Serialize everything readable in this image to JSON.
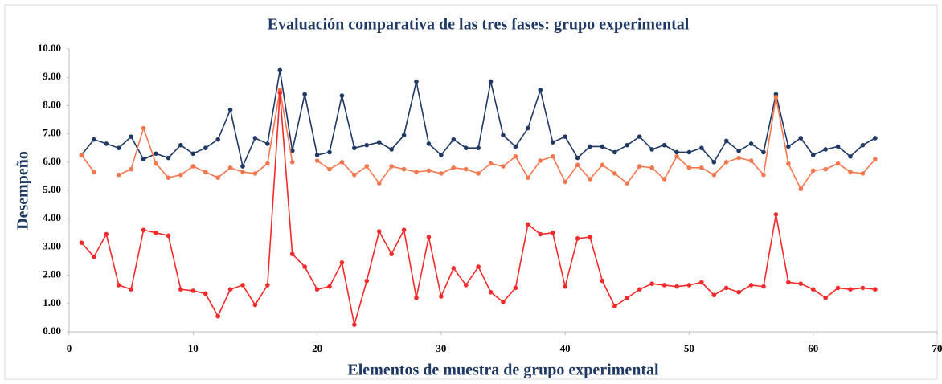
{
  "chart_data": {
    "type": "line",
    "title": "Evaluación comparativa de las tres fases: grupo experimental",
    "y_label": "Desempeño",
    "x_label": "Elementos de muestra de grupo experimental",
    "x": [
      1,
      2,
      3,
      4,
      5,
      6,
      7,
      8,
      9,
      10,
      11,
      12,
      13,
      14,
      15,
      16,
      17,
      18,
      19,
      20,
      21,
      22,
      23,
      24,
      25,
      26,
      27,
      28,
      29,
      30,
      31,
      32,
      33,
      34,
      35,
      36,
      37,
      38,
      39,
      40,
      41,
      42,
      43,
      44,
      45,
      46,
      47,
      48,
      49,
      50,
      51,
      52,
      53,
      54,
      55,
      56,
      57,
      58,
      59,
      60,
      61,
      62,
      63,
      64,
      65
    ],
    "series": [
      {
        "color": "#1f3864",
        "values": [
          6.25,
          6.8,
          6.65,
          6.5,
          6.9,
          6.1,
          6.3,
          6.15,
          6.6,
          6.3,
          6.5,
          6.8,
          7.85,
          5.85,
          6.85,
          6.65,
          9.25,
          6.4,
          8.4,
          6.25,
          6.35,
          8.35,
          6.5,
          6.6,
          6.7,
          6.45,
          6.95,
          8.85,
          6.65,
          6.25,
          6.8,
          6.5,
          6.5,
          8.85,
          6.95,
          6.55,
          7.2,
          8.55,
          6.7,
          6.9,
          6.15,
          6.55,
          6.55,
          6.35,
          6.6,
          6.9,
          6.45,
          6.6,
          6.35,
          6.35,
          6.5,
          6.0,
          6.75,
          6.4,
          6.65,
          6.35,
          8.4,
          6.55,
          6.85,
          6.25,
          6.45,
          6.55,
          6.2,
          6.6,
          6.85
        ]
      },
      {
        "color": "#f4774f",
        "values": [
          6.25,
          5.65,
          null,
          5.55,
          5.75,
          7.2,
          5.95,
          5.45,
          5.55,
          5.85,
          5.65,
          5.45,
          5.8,
          5.65,
          5.6,
          5.95,
          8.55,
          6.0,
          null,
          6.05,
          5.75,
          6.0,
          5.55,
          5.85,
          5.25,
          5.85,
          5.75,
          5.65,
          5.7,
          5.6,
          5.8,
          5.75,
          5.6,
          5.95,
          5.85,
          6.2,
          5.45,
          6.05,
          6.2,
          5.3,
          5.9,
          5.4,
          5.9,
          5.6,
          5.25,
          5.85,
          5.8,
          5.4,
          6.2,
          5.8,
          5.8,
          5.55,
          6.0,
          6.15,
          6.05,
          5.55,
          8.3,
          5.95,
          5.05,
          5.7,
          5.75,
          5.95,
          5.65,
          5.6,
          6.1
        ]
      },
      {
        "color": "#f22a2a",
        "values": [
          3.15,
          2.65,
          3.45,
          1.65,
          1.5,
          3.6,
          3.5,
          3.4,
          1.5,
          1.45,
          1.35,
          0.55,
          1.5,
          1.65,
          0.95,
          1.65,
          8.45,
          2.75,
          2.3,
          1.5,
          1.6,
          2.45,
          0.25,
          1.8,
          3.55,
          2.75,
          3.6,
          1.2,
          3.35,
          1.25,
          2.25,
          1.65,
          2.3,
          1.4,
          1.05,
          1.55,
          3.8,
          3.45,
          3.5,
          1.6,
          3.3,
          3.35,
          1.8,
          0.9,
          1.2,
          1.5,
          1.7,
          1.65,
          1.6,
          1.65,
          1.75,
          1.3,
          1.55,
          1.4,
          1.65,
          1.6,
          4.15,
          1.75,
          1.7,
          1.5,
          1.2,
          1.55,
          1.5,
          1.55,
          1.5
        ]
      }
    ],
    "xlim": [
      0,
      70
    ],
    "xticks": [
      0,
      10,
      20,
      30,
      40,
      50,
      60,
      70
    ],
    "ylim": [
      0,
      10
    ],
    "yticks": [
      {
        "value": 0,
        "label": "0.00"
      },
      {
        "value": 1,
        "label": "1.00"
      },
      {
        "value": 2,
        "label": "2.00"
      },
      {
        "value": 3,
        "label": "3.00"
      },
      {
        "value": 4,
        "label": "4.00"
      },
      {
        "value": 5,
        "label": "5.00"
      },
      {
        "value": 6,
        "label": "6.00"
      },
      {
        "value": 7,
        "label": "7.00"
      },
      {
        "value": 8,
        "label": "8.00"
      },
      {
        "value": 9,
        "label": "9.00"
      },
      {
        "value": 10,
        "label": "10.00"
      }
    ],
    "grid": false
  }
}
